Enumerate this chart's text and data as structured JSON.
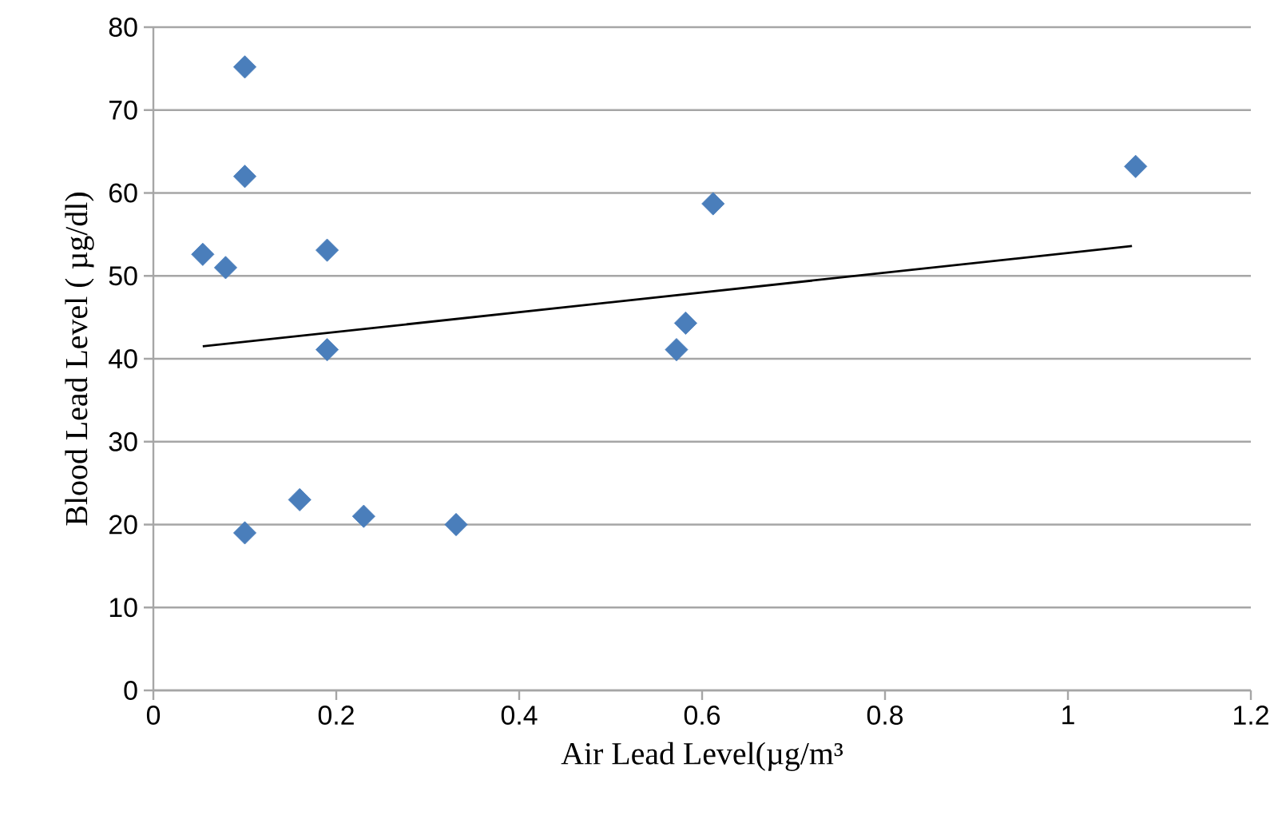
{
  "chart_data": {
    "type": "scatter",
    "xlabel": "Air Lead Level(µg/m³",
    "ylabel": "Blood Lead Level ( µg/dl)",
    "xlim": [
      0,
      1.2
    ],
    "xticks": [
      0,
      0.2,
      0.4,
      0.6,
      0.8,
      1,
      1.2
    ],
    "ylim": [
      0,
      80
    ],
    "yticks": [
      0,
      10,
      20,
      30,
      40,
      50,
      60,
      70,
      80
    ],
    "grid": "y",
    "series": [
      {
        "color": "#4a7ebb",
        "marker": "diamond",
        "x": [
          0.1,
          0.1,
          0.054,
          0.079,
          0.19,
          0.19,
          0.1,
          0.16,
          0.23,
          0.331,
          0.572,
          0.582,
          0.612,
          1.074
        ],
        "values": [
          75.2,
          62.0,
          52.6,
          51.0,
          53.1,
          41.1,
          19.0,
          23.0,
          21.0,
          20.0,
          41.1,
          44.3,
          58.7,
          63.2
        ]
      },
      {
        "type": "line",
        "color": "#000000",
        "marker": "none",
        "x": [
          0.054,
          1.07
        ],
        "values": [
          41.5,
          53.6
        ]
      }
    ]
  }
}
